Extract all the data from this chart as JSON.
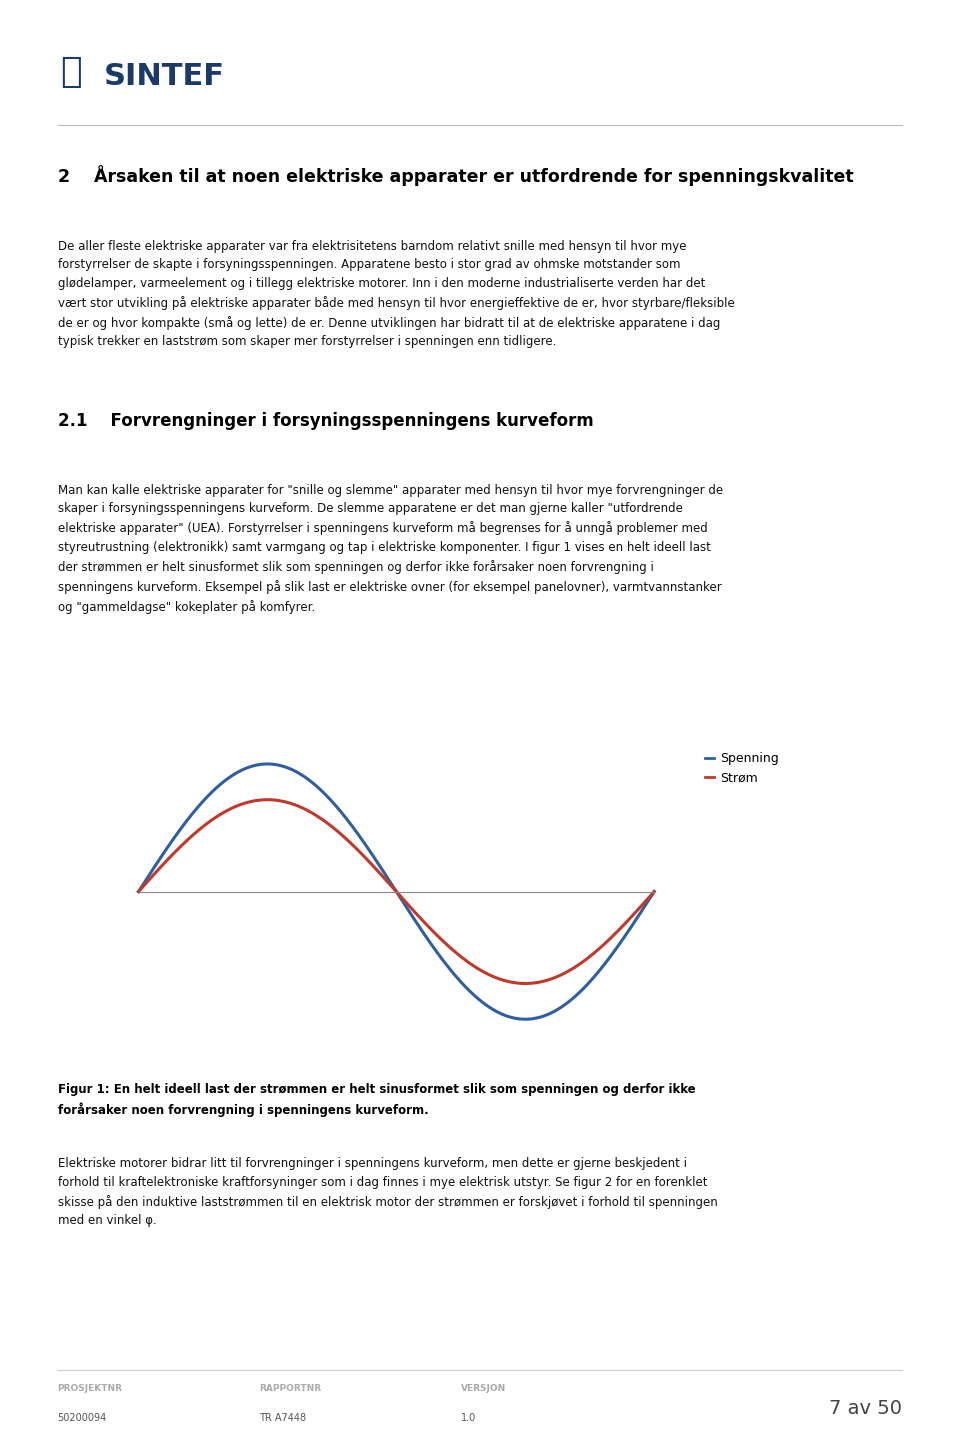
{
  "page_width": 9.6,
  "page_height": 14.36,
  "bg_color": "#ffffff",
  "header": {
    "logo_text": "SINTEF",
    "logo_color": "#1a3a6b",
    "logo_fontsize": 22
  },
  "section2_title": "2    Årsaken til at noen elektriske apparater er utfordrende for spenningskvalitet",
  "section2_body": "De aller fleste elektriske apparater var fra elektrisitetens barndom relativt snille med hensyn til hvor mye\nforstyrrelser de skapte i forsyningsspenningen. Apparatene besto i stor grad av ohmske motstander som\nglødelamper, varmeelement og i tillegg elektriske motorer. Inn i den moderne industrialiserte verden har det\nvært stor utvikling på elektriske apparater både med hensyn til hvor energieffektive de er, hvor styrbare/fleksible\nde er og hvor kompakte (små og lette) de er. Denne utviklingen har bidratt til at de elektriske apparatene i dag\ntypisk trekker en laststrøm som skaper mer forstyrrelser i spenningen enn tidligere.",
  "section21_title": "2.1    Forvrengninger i forsyningsspenningens kurveform",
  "section21_body1": "Man kan kalle elektriske apparater for \"snille og slemme\" apparater med hensyn til hvor mye forvrengninger de\nskaper i forsyningsspenningens kurveform. De slemme apparatene er det man gjerne kaller \"utfordrende\nelektriske apparater\" (UEA). Forstyrrelser i spenningens kurveform må begrenses for å unngå problemer med\nstyreutrustning (elektronikk) samt varmgang og tap i elektriske komponenter. I figur 1 vises en helt ideell last\nder strømmen er helt sinusformet slik som spenningen og derfor ikke forårsaker noen forvrengning i\nspenningens kurveform. Eksempel på slik last er elektriske ovner (for eksempel panelovner), varmtvannstanker\nog \"gammeldagse\" kokeplater på komfyrer.",
  "legend_spenning_label": "Spenning",
  "legend_strom_label": "Strøm",
  "legend_spenning_color": "#2e5fa3",
  "legend_strom_color": "#c0392b",
  "figure_caption_bold": "Figur 1: En helt ideell last der strømmen er helt sinusformet slik som spenningen og derfor ikke\nforårsaker noen forvrengning i spenningens kurveform.",
  "section21_body2": "Elektriske motorer bidrar litt til forvrengninger i spenningens kurveform, men dette er gjerne beskjedent i\nforhold til kraftelektroniske kraftforsyninger som i dag finnes i mye elektrisk utstyr. Se figur 2 for en forenklet\nskisse på den induktive laststrømmen til en elektrisk motor der strømmen er forskjøvet i forhold til spenningen\nmed en vinkel φ.",
  "footer": {
    "line_color": "#cccccc",
    "prosjektnr_label": "PROSJEKTNR",
    "prosjektnr_value": "50200094",
    "rapportnr_label": "RAPPORTNR",
    "rapportnr_value": "TR A7448",
    "versjon_label": "VERSJON",
    "versjon_value": "1.0",
    "page_text": "7 av 50",
    "label_color": "#aaaaaa",
    "value_color": "#555555",
    "page_color": "#444444"
  }
}
